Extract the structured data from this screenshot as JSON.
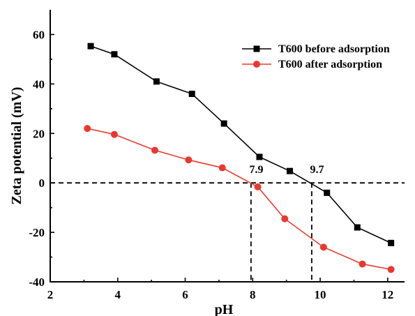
{
  "chart_data": {
    "type": "line",
    "xlabel": "pH",
    "ylabel": "Zeta potential (mV)",
    "xlim": [
      2,
      12.5
    ],
    "ylim": [
      -40,
      70
    ],
    "xticks": [
      2,
      4,
      6,
      8,
      10,
      12
    ],
    "yticks": [
      -40,
      -20,
      0,
      20,
      40,
      60
    ],
    "grid": false,
    "legend_position": "top-right",
    "series": [
      {
        "name": "T600 before adsorption",
        "color": "#000000",
        "marker": "square",
        "x": [
          3.2,
          3.9,
          5.15,
          6.2,
          7.15,
          8.2,
          9.1,
          10.2,
          11.1,
          12.1
        ],
        "y": [
          55.3,
          52.0,
          41.0,
          36.0,
          24.0,
          10.5,
          4.8,
          -4.0,
          -18.0,
          -24.3
        ]
      },
      {
        "name": "T600 after adsorption",
        "color": "#e8392f",
        "marker": "circle",
        "x": [
          3.1,
          3.9,
          5.1,
          6.1,
          7.1,
          8.15,
          8.95,
          10.1,
          11.25,
          12.1
        ],
        "y": [
          22.0,
          19.6,
          13.2,
          9.3,
          6.1,
          -1.6,
          -14.5,
          -26.0,
          -32.8,
          -35.0
        ]
      }
    ],
    "reference_lines": [
      {
        "orientation": "horizontal",
        "y": 0
      },
      {
        "orientation": "vertical",
        "x": 7.95
      },
      {
        "orientation": "vertical",
        "x": 9.75
      }
    ],
    "annotations": [
      {
        "text": "7.9",
        "x": 7.9,
        "y": 4
      },
      {
        "text": "9.7",
        "x": 9.7,
        "y": 4
      }
    ]
  }
}
